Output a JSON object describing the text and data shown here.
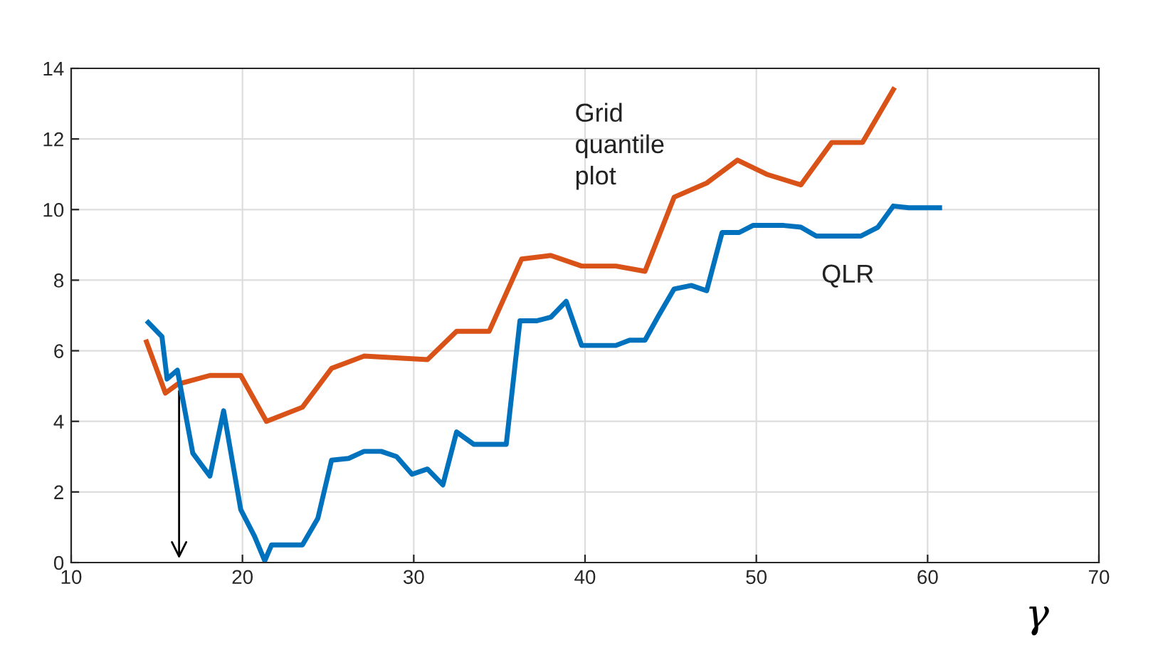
{
  "chart_data": {
    "type": "line",
    "xlabel": "γ",
    "xlim": [
      10,
      70
    ],
    "ylim": [
      0,
      14
    ],
    "xticks": [
      10,
      20,
      30,
      40,
      50,
      60,
      70
    ],
    "yticks": [
      0,
      2,
      4,
      6,
      8,
      10,
      12,
      14
    ],
    "grid": true,
    "legend": false,
    "series": [
      {
        "name": "Grid quantile plot",
        "color": "#d95319",
        "x": [
          14.4,
          15.5,
          16.2,
          18.1,
          19.9,
          21.4,
          23.5,
          25.2,
          27.1,
          30.8,
          32.5,
          34.4,
          36.3,
          38.0,
          39.8,
          41.8,
          43.5,
          45.2,
          47.1,
          48.9,
          50.6,
          52.6,
          54.4,
          56.2,
          58.0
        ],
        "values": [
          6.25,
          4.8,
          5.05,
          5.3,
          5.3,
          4.0,
          4.4,
          5.5,
          5.85,
          5.75,
          6.55,
          6.55,
          8.6,
          8.7,
          8.4,
          8.4,
          8.25,
          10.35,
          10.75,
          11.4,
          11.0,
          10.7,
          11.9,
          11.9,
          13.4
        ]
      },
      {
        "name": "QLR",
        "color": "#0072bd",
        "x": [
          14.5,
          15.3,
          15.6,
          16.2,
          17.1,
          18.1,
          18.9,
          19.9,
          20.7,
          21.3,
          21.7,
          23.5,
          24.4,
          25.2,
          26.2,
          27.1,
          28.1,
          29.0,
          29.9,
          30.8,
          31.7,
          32.5,
          33.5,
          35.4,
          36.2,
          37.2,
          38.0,
          38.9,
          39.8,
          41.8,
          42.6,
          43.5,
          44.3,
          45.2,
          46.2,
          47.1,
          48.0,
          49.0,
          49.8,
          51.6,
          52.6,
          53.5,
          56.1,
          57.1,
          58.0,
          58.9,
          60.7
        ],
        "values": [
          6.8,
          6.4,
          5.2,
          5.45,
          3.1,
          2.45,
          4.3,
          1.5,
          0.75,
          0.05,
          0.5,
          0.5,
          1.25,
          2.9,
          2.95,
          3.15,
          3.15,
          3.0,
          2.5,
          2.65,
          2.2,
          3.7,
          3.35,
          3.35,
          6.85,
          6.85,
          6.95,
          7.4,
          6.15,
          6.15,
          6.3,
          6.3,
          7.0,
          7.75,
          7.85,
          7.7,
          9.35,
          9.35,
          9.55,
          9.55,
          9.5,
          9.25,
          9.25,
          9.5,
          10.1,
          10.05,
          10.05
        ]
      }
    ]
  }
}
